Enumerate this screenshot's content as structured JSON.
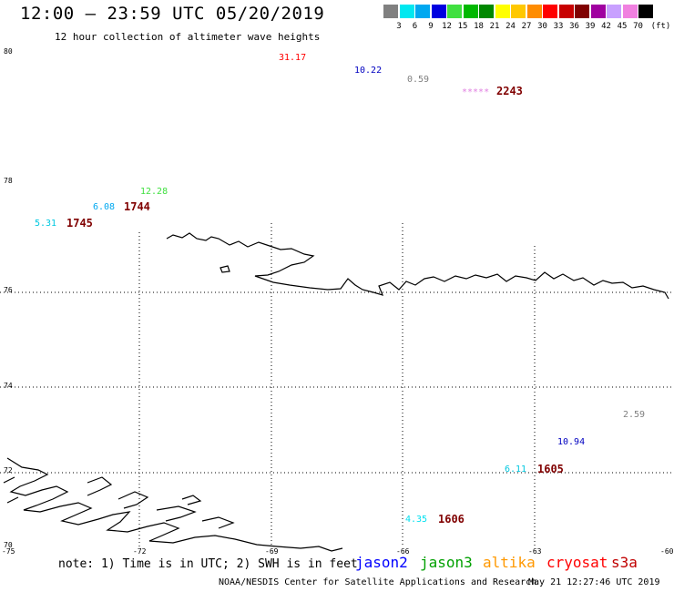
{
  "header": {
    "title": "12:00 – 23:59 UTC 05/20/2019",
    "subtitle": "12 hour collection of altimeter wave heights"
  },
  "legend": {
    "unit": "(ft)",
    "levels": [
      {
        "label": "3",
        "color": "#808080"
      },
      {
        "label": "6",
        "color": "#00e8f0"
      },
      {
        "label": "9",
        "color": "#00a8f0"
      },
      {
        "label": "12",
        "color": "#0000e0"
      },
      {
        "label": "15",
        "color": "#40e040"
      },
      {
        "label": "18",
        "color": "#00b800"
      },
      {
        "label": "21",
        "color": "#008800"
      },
      {
        "label": "24",
        "color": "#ffff00"
      },
      {
        "label": "27",
        "color": "#ffc800"
      },
      {
        "label": "30",
        "color": "#ff8c00"
      },
      {
        "label": "33",
        "color": "#ff0000"
      },
      {
        "label": "36",
        "color": "#c80000"
      },
      {
        "label": "39",
        "color": "#800000"
      },
      {
        "label": "42",
        "color": "#a000a0"
      },
      {
        "label": "45",
        "color": "#c8a0ff"
      },
      {
        "label": "70",
        "color": "#f080e0"
      },
      {
        "label": "",
        "color": "#000000"
      }
    ]
  },
  "map": {
    "lat_labels": [
      "80",
      "78",
      "76",
      "74",
      "72",
      "70"
    ],
    "lon_labels": [
      "-75",
      "-72",
      "-69",
      "-66",
      "-63",
      "-60"
    ]
  },
  "observations": {
    "swh": [
      {
        "text": "31.17",
        "color": "#ff0000"
      },
      {
        "text": "10.22",
        "color": "#0000c0"
      },
      {
        "text": "0.59",
        "color": "#808080"
      },
      {
        "text": "*****",
        "color": "#e080e0"
      },
      {
        "text": "12.28",
        "color": "#40e040"
      },
      {
        "text": "6.08",
        "color": "#00a8f0"
      },
      {
        "text": "5.31",
        "color": "#00c8e0"
      },
      {
        "text": "2.59",
        "color": "#808080"
      },
      {
        "text": "10.94",
        "color": "#0000c0"
      },
      {
        "text": "6.11",
        "color": "#00c8e0"
      },
      {
        "text": "4.35",
        "color": "#00e0f0"
      }
    ],
    "times": [
      "2243",
      "1744",
      "1745",
      "1605",
      "1606"
    ]
  },
  "footer": {
    "note": "note: 1) Time is in UTC; 2) SWH is in feet",
    "satellites": [
      {
        "name": "jason2",
        "color": "#0000ff"
      },
      {
        "name": "jason3",
        "color": "#00a000"
      },
      {
        "name": "altika",
        "color": "#ff9800"
      },
      {
        "name": "cryosat",
        "color": "#ff0000"
      },
      {
        "name": "s3a",
        "color": "#c00000"
      }
    ],
    "credit": "NOAA/NESDIS Center for Satellite Applications and Research",
    "generated": "May 21 12:27:46 UTC 2019"
  }
}
